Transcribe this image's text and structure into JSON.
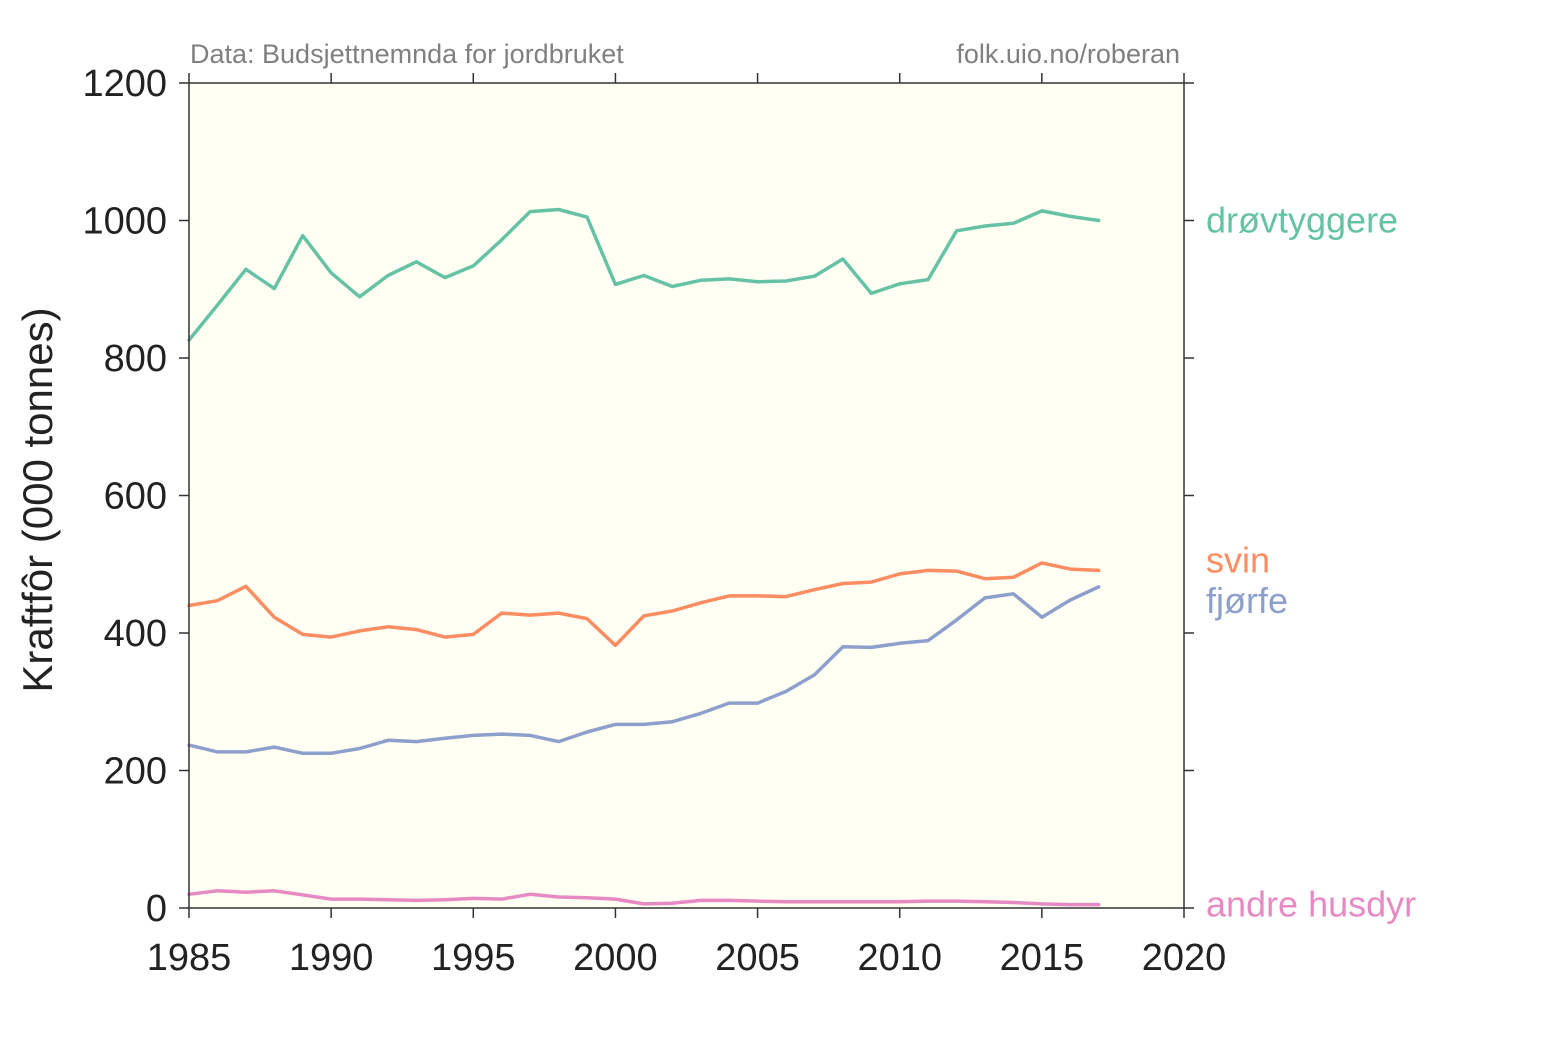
{
  "notes": {
    "source": "Data: Budsjettnemnda for jordbruket",
    "credit": "folk.uio.no/roberan"
  },
  "chart_data": {
    "type": "line",
    "title": "",
    "xlabel": "",
    "ylabel": "Kraftfôr (000 tonnes)",
    "xlim": [
      1985,
      2020
    ],
    "ylim": [
      0,
      1200
    ],
    "xticks": [
      1985,
      1990,
      1995,
      2000,
      2005,
      2010,
      2015,
      2020
    ],
    "yticks": [
      0,
      200,
      400,
      600,
      800,
      1000,
      1200
    ],
    "x_tick_labels": [
      "1985",
      "1990",
      "1995",
      "2000",
      "2005",
      "2010",
      "2015",
      "2020"
    ],
    "y_tick_labels": [
      "0",
      "200",
      "400",
      "600",
      "800",
      "1000",
      "1200"
    ],
    "grid": false,
    "legend": "direct labels at right end of lines",
    "background": "#fffff4",
    "x": [
      1985,
      1986,
      1987,
      1988,
      1989,
      1990,
      1991,
      1992,
      1993,
      1994,
      1995,
      1996,
      1997,
      1998,
      1999,
      2000,
      2001,
      2002,
      2003,
      2004,
      2005,
      2006,
      2007,
      2008,
      2009,
      2010,
      2011,
      2012,
      2013,
      2014,
      2015,
      2016,
      2017
    ],
    "series": [
      {
        "name": "drøvtyggere",
        "color": "#66c2a5",
        "values": [
          826,
          877,
          929,
          901,
          978,
          924,
          889,
          920,
          940,
          917,
          934,
          972,
          1013,
          1016,
          1005,
          907,
          920,
          904,
          913,
          915,
          911,
          912,
          919,
          944,
          894,
          908,
          914,
          985,
          992,
          996,
          1014,
          1006,
          1000
        ]
      },
      {
        "name": "svin",
        "color": "#fc8d62",
        "values": [
          440,
          447,
          468,
          423,
          398,
          394,
          403,
          409,
          405,
          394,
          398,
          429,
          426,
          429,
          421,
          382,
          425,
          432,
          444,
          454,
          454,
          453,
          463,
          472,
          474,
          486,
          491,
          490,
          479,
          481,
          502,
          493,
          491
        ]
      },
      {
        "name": "fjørfe",
        "color": "#8da0cb",
        "values": [
          237,
          227,
          227,
          234,
          225,
          225,
          232,
          244,
          242,
          247,
          251,
          253,
          251,
          242,
          256,
          267,
          267,
          271,
          283,
          298,
          298,
          315,
          339,
          380,
          379,
          385,
          389,
          419,
          451,
          457,
          423,
          448,
          467
        ]
      },
      {
        "name": "andre husdyr",
        "color": "#e78ac3",
        "values": [
          20,
          25,
          23,
          25,
          19,
          13,
          13,
          12,
          11,
          12,
          14,
          13,
          20,
          16,
          15,
          13,
          6,
          7,
          11,
          11,
          10,
          9,
          9,
          9,
          9,
          9,
          10,
          10,
          9,
          8,
          6,
          5,
          5
        ]
      }
    ]
  }
}
